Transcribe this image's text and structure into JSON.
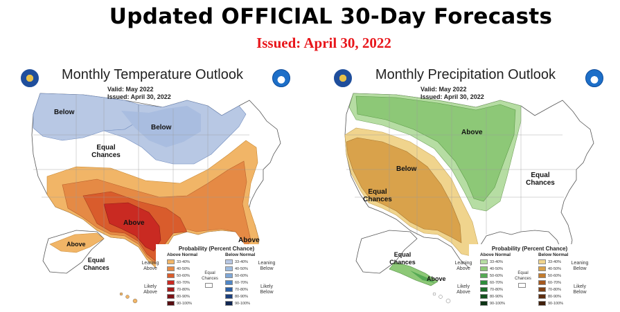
{
  "header": {
    "title": "Updated OFFICIAL 30-Day Forecasts",
    "issued": "Issued: April 30, 2022"
  },
  "colors": {
    "title_red": "#e8161b",
    "temp_below": "#b8c8e4",
    "temp_below_dark": "#9dbbe0",
    "temp_above_33": "#f1b567",
    "temp_above_40": "#e58a45",
    "temp_above_50": "#d95c2c",
    "temp_above_60": "#c92a22",
    "precip_above_33": "#b6dda3",
    "precip_above_40": "#8dc877",
    "precip_above_50": "#55a954",
    "precip_below_33": "#f0d48d",
    "precip_below_40": "#d9a24b"
  },
  "temperature": {
    "title": "Monthly Temperature Outlook",
    "valid": "Valid: May 2022",
    "issued": "Issued: April 30, 2022",
    "labels": {
      "below_nw": "Below",
      "below_ne": "Below",
      "equal": "Equal Chances",
      "above": "Above",
      "above_se": "Above",
      "alaska_above": "Above",
      "alaska_equal": "Equal Chances"
    },
    "icons": [
      "noaa-logo-icon",
      "commerce-seal-icon"
    ]
  },
  "precipitation": {
    "title": "Monthly Precipitation Outlook",
    "valid": "Valid: May 2022",
    "issued": "Issued: April 30, 2022",
    "labels": {
      "above": "Above",
      "below": "Below",
      "equal_west": "Equal Chances",
      "equal_east": "Equal Chances",
      "alaska_equal": "Equal Chances",
      "alaska_above": "Above"
    },
    "icons": [
      "noaa-logo-icon",
      "commerce-seal-icon"
    ]
  },
  "legend_temp": {
    "title": "Probability (Percent Chance)",
    "above_header": "Above Normal",
    "below_header": "Below Normal",
    "leaning_above": "Leaning Above",
    "likely_above": "Likely Above",
    "leaning_below": "Leaning Below",
    "likely_below": "Likely Below",
    "equal": "Equal Chances",
    "ranges": [
      "33-40%",
      "40-50%",
      "50-60%",
      "60-70%",
      "70-80%",
      "80-90%",
      "90-100%"
    ],
    "above_colors": [
      "#f1b567",
      "#e58a45",
      "#d95c2c",
      "#c92a22",
      "#a31b1b",
      "#7c1216",
      "#560c0f"
    ],
    "below_colors": [
      "#b8c8e4",
      "#9dbbe0",
      "#7fa7d6",
      "#4f86c6",
      "#2a5ea5",
      "#1b3f7c",
      "#102652"
    ]
  },
  "legend_precip": {
    "title": "Probability (Percent Chance)",
    "above_header": "Above Normal",
    "below_header": "Below Normal",
    "leaning_above": "Leaning Above",
    "likely_above": "Likely Above",
    "leaning_below": "Leaning Below",
    "likely_below": "Likely Below",
    "equal": "Equal Chances",
    "ranges": [
      "33-40%",
      "40-50%",
      "50-60%",
      "60-70%",
      "70-80%",
      "80-90%",
      "90-100%"
    ],
    "above_colors": [
      "#b6dda3",
      "#8dc877",
      "#55a954",
      "#2f8d3c",
      "#1e6f2b",
      "#14521f",
      "#0c3414"
    ],
    "below_colors": [
      "#f0d48d",
      "#d9a24b",
      "#c27a2c",
      "#a5581e",
      "#804116",
      "#5e2e10",
      "#3f1e0a"
    ]
  }
}
